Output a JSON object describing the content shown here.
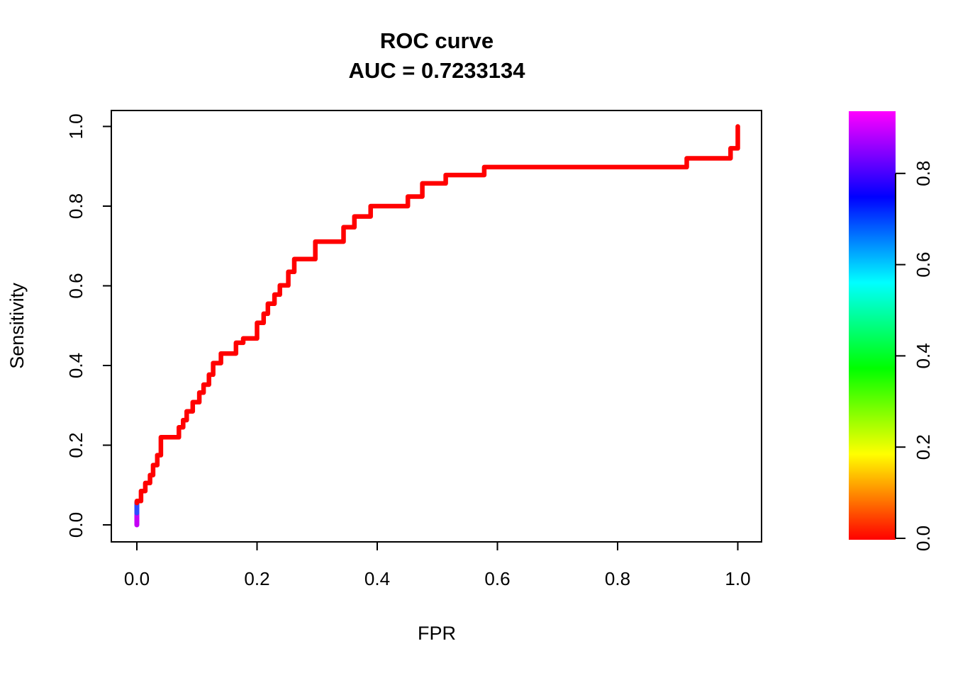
{
  "page": {
    "background_color": "#FFFFFF",
    "description": "R base-graphics plot of a colorized ROC curve with rainbow threshold colorbar"
  },
  "chart_data": {
    "type": "line",
    "subtype": "ROC step curve colored by decision threshold",
    "title": "ROC curve",
    "subtitle": "AUC = 0.7233134",
    "auc_value": "0.7233134",
    "xlabel": "FPR",
    "ylabel": "Sensitivity",
    "xlim": [
      0,
      1
    ],
    "ylim": [
      0,
      1
    ],
    "grid": false,
    "legend": "none",
    "x_ticks": [
      0.0,
      0.2,
      0.4,
      0.6,
      0.8,
      1.0
    ],
    "x_tick_labels": [
      "0.0",
      "0.2",
      "0.4",
      "0.6",
      "0.8",
      "1.0"
    ],
    "y_ticks": [
      0.0,
      0.2,
      0.4,
      0.6,
      0.8,
      1.0
    ],
    "y_tick_labels": [
      "0.0",
      "0.2",
      "0.4",
      "0.6",
      "0.8",
      "1.0"
    ],
    "curve_color": "#FF0000",
    "curve_start_segments": [
      {
        "x": 0.0,
        "y1": 0.0,
        "y2": 0.034,
        "color": "#C400F5"
      },
      {
        "x": 0.0,
        "y1": 0.03,
        "y2": 0.057,
        "color": "#2E4BFF"
      }
    ],
    "roc_points": [
      [
        0.0,
        0.055
      ],
      [
        0.0,
        0.06
      ],
      [
        0.007,
        0.06
      ],
      [
        0.007,
        0.085
      ],
      [
        0.014,
        0.085
      ],
      [
        0.014,
        0.105
      ],
      [
        0.022,
        0.105
      ],
      [
        0.022,
        0.125
      ],
      [
        0.027,
        0.125
      ],
      [
        0.027,
        0.15
      ],
      [
        0.034,
        0.15
      ],
      [
        0.034,
        0.175
      ],
      [
        0.04,
        0.175
      ],
      [
        0.04,
        0.22
      ],
      [
        0.07,
        0.22
      ],
      [
        0.07,
        0.245
      ],
      [
        0.077,
        0.245
      ],
      [
        0.077,
        0.263
      ],
      [
        0.083,
        0.263
      ],
      [
        0.083,
        0.285
      ],
      [
        0.093,
        0.285
      ],
      [
        0.093,
        0.308
      ],
      [
        0.104,
        0.308
      ],
      [
        0.104,
        0.332
      ],
      [
        0.111,
        0.332
      ],
      [
        0.111,
        0.352
      ],
      [
        0.12,
        0.352
      ],
      [
        0.12,
        0.377
      ],
      [
        0.127,
        0.377
      ],
      [
        0.127,
        0.406
      ],
      [
        0.14,
        0.406
      ],
      [
        0.14,
        0.43
      ],
      [
        0.165,
        0.43
      ],
      [
        0.165,
        0.457
      ],
      [
        0.177,
        0.457
      ],
      [
        0.177,
        0.468
      ],
      [
        0.2,
        0.468
      ],
      [
        0.2,
        0.507
      ],
      [
        0.211,
        0.507
      ],
      [
        0.211,
        0.53
      ],
      [
        0.218,
        0.53
      ],
      [
        0.218,
        0.555
      ],
      [
        0.229,
        0.555
      ],
      [
        0.229,
        0.578
      ],
      [
        0.238,
        0.578
      ],
      [
        0.238,
        0.601
      ],
      [
        0.252,
        0.601
      ],
      [
        0.252,
        0.635
      ],
      [
        0.262,
        0.635
      ],
      [
        0.262,
        0.667
      ],
      [
        0.297,
        0.667
      ],
      [
        0.297,
        0.711
      ],
      [
        0.344,
        0.711
      ],
      [
        0.344,
        0.747
      ],
      [
        0.362,
        0.747
      ],
      [
        0.362,
        0.774
      ],
      [
        0.389,
        0.774
      ],
      [
        0.389,
        0.8
      ],
      [
        0.451,
        0.8
      ],
      [
        0.451,
        0.824
      ],
      [
        0.475,
        0.824
      ],
      [
        0.475,
        0.857
      ],
      [
        0.514,
        0.857
      ],
      [
        0.514,
        0.878
      ],
      [
        0.578,
        0.878
      ],
      [
        0.578,
        0.898
      ],
      [
        0.915,
        0.898
      ],
      [
        0.915,
        0.92
      ],
      [
        0.988,
        0.92
      ],
      [
        0.988,
        0.945
      ],
      [
        1.0,
        0.945
      ],
      [
        1.0,
        1.0
      ]
    ],
    "colorbar": {
      "position": "right",
      "value_min": 0.0,
      "value_max": 0.94,
      "ticks": [
        0.0,
        0.2,
        0.4,
        0.6,
        0.8
      ],
      "tick_labels": [
        "0.0",
        "0.2",
        "0.4",
        "0.6",
        "0.8"
      ],
      "gradient_top_to_bottom": [
        "#FF00FF",
        "#8000FF",
        "#0000FF",
        "#0080FF",
        "#00FFFF",
        "#00FF80",
        "#00FF00",
        "#80FF00",
        "#FFFF00",
        "#FF8000",
        "#FF0000"
      ]
    }
  }
}
